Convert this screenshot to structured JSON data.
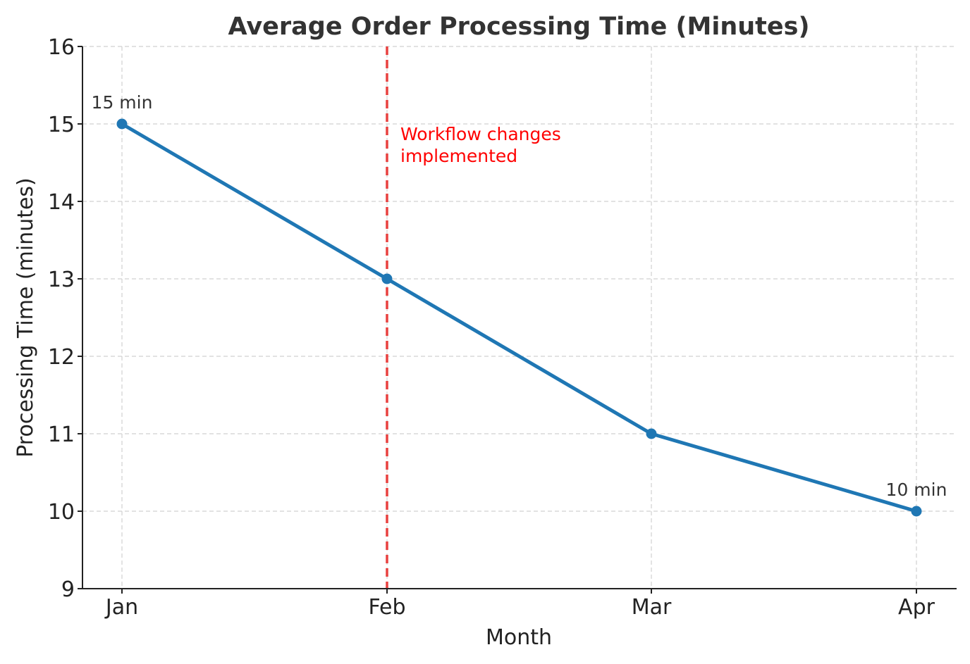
{
  "chart_data": {
    "type": "line",
    "title": "Average Order Processing Time (Minutes)",
    "xlabel": "Month",
    "ylabel": "Processing Time (minutes)",
    "categories": [
      "Jan",
      "Feb",
      "Mar",
      "Apr"
    ],
    "series": [
      {
        "values": [
          15,
          13,
          11,
          10
        ],
        "color": "#1f77b4"
      }
    ],
    "ylim": [
      9,
      16
    ],
    "yticks": [
      "9",
      "10",
      "11",
      "12",
      "13",
      "14",
      "15",
      "16"
    ],
    "grid": true,
    "data_labels": [
      {
        "category": "Jan",
        "value": 15,
        "text": "15 min"
      },
      {
        "category": "Apr",
        "value": 10,
        "text": "10 min"
      }
    ],
    "reference_line": {
      "category": "Feb",
      "style": "dashed",
      "color": "#e8403f",
      "label_lines": [
        "Workflow changes",
        "implemented"
      ],
      "label_color": "#ff0000"
    }
  }
}
